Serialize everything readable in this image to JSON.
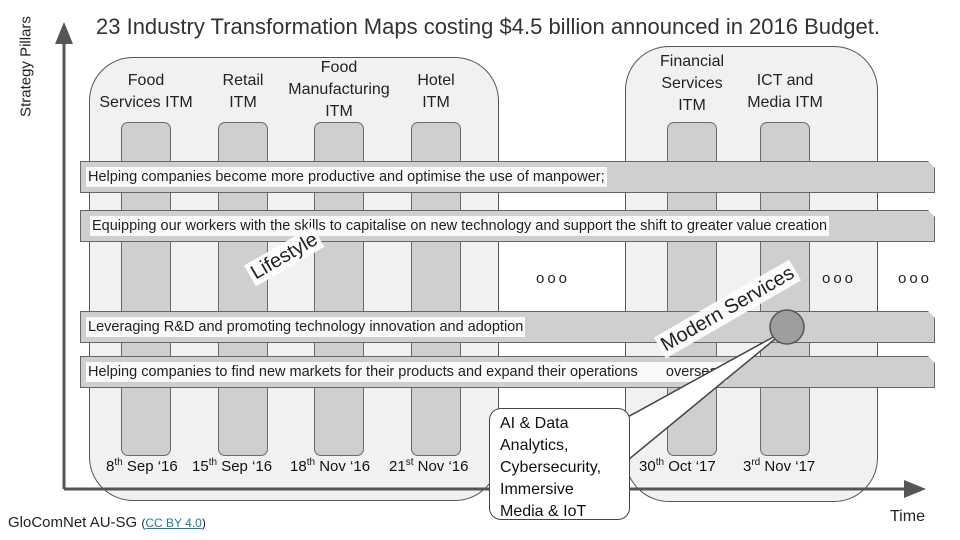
{
  "title": "23 Industry Transformation Maps costing $4.5 billion announced in 2016 Budget.",
  "axes": {
    "y_label": "Strategy Pillars",
    "x_label": "Time"
  },
  "groups": [
    {
      "label": "Lifestyle",
      "maps": [
        {
          "name": "Food\nServices ITM",
          "date_day": "8",
          "date_suffix": "th",
          "date_rest": " Sep ‘16"
        },
        {
          "name": "Retail\nITM",
          "date_day": "15",
          "date_suffix": "th",
          "date_rest": " Sep ‘16"
        },
        {
          "name": "Food\nManufacturing\nITM",
          "date_day": "18",
          "date_suffix": "th",
          "date_rest": " Nov ‘16"
        },
        {
          "name": "Hotel\nITM",
          "date_day": "21",
          "date_suffix": "st",
          "date_rest": " Nov ‘16"
        }
      ]
    },
    {
      "label": "Modern Services",
      "maps": [
        {
          "name": "Financial\nServices\nITM",
          "date_day": "30",
          "date_suffix": "th",
          "date_rest": " Oct ‘17"
        },
        {
          "name": "ICT and\nMedia ITM",
          "date_day": "3",
          "date_suffix": "rd",
          "date_rest": " Nov ‘17"
        }
      ]
    }
  ],
  "pillars": [
    "Helping companies become more productive and optimise the use of manpower;",
    "Equipping our workers with the skills to capitalise on new technology and support the shift to greater value creation",
    "Leveraging R&D and promoting technology innovation and adoption",
    "Helping companies to find new markets for their products and expand their operations       overseas"
  ],
  "ellipses": [
    "ooo",
    "ooo",
    "ooo"
  ],
  "callout": "AI & Data Analytics, Cybersecurity, Immersive Media & IoT",
  "credit": {
    "text": "GloComNet AU-SG",
    "open_paren": "(",
    "license": "CC BY 4.0",
    "close_paren": ")"
  }
}
